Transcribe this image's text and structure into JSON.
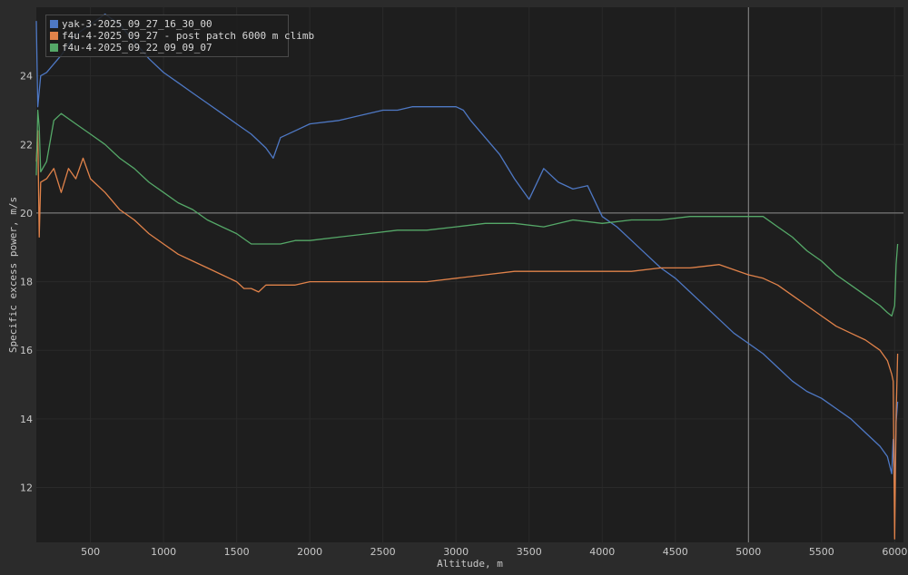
{
  "chart_data": {
    "type": "line",
    "title": "",
    "xlabel": "Altitude, m",
    "ylabel": "Specific excess power, m/s",
    "xlim": [
      130,
      6060
    ],
    "ylim": [
      10.4,
      26.0
    ],
    "xticks": [
      500,
      1000,
      1500,
      2000,
      2500,
      3000,
      3500,
      4000,
      4500,
      5000,
      5500,
      6000
    ],
    "yticks": [
      12,
      14,
      16,
      18,
      20,
      22,
      24
    ],
    "reference_lines": {
      "y": 20,
      "x": 5000
    },
    "grid": "faint",
    "legend_position": "top-left",
    "colors": {
      "background": "#1e1e1e",
      "frame": "#2b2b2b",
      "grid": "#2a2a2a",
      "reference": "#8c8c8c"
    },
    "series": [
      {
        "name": "yak-3-2025_09_27_16_30_00",
        "color": "#4e78c4",
        "x": [
          130,
          140,
          160,
          200,
          300,
          400,
          500,
          600,
          700,
          800,
          900,
          1000,
          1100,
          1200,
          1300,
          1400,
          1500,
          1600,
          1650,
          1700,
          1750,
          1800,
          1900,
          2000,
          2200,
          2400,
          2500,
          2600,
          2700,
          2800,
          2900,
          3000,
          3050,
          3100,
          3200,
          3300,
          3400,
          3500,
          3600,
          3700,
          3800,
          3900,
          4000,
          4100,
          4200,
          4300,
          4400,
          4500,
          4600,
          4700,
          4800,
          4900,
          5000,
          5100,
          5200,
          5300,
          5400,
          5500,
          5600,
          5700,
          5800,
          5900,
          5950,
          5980,
          5990,
          6000,
          6010,
          6020
        ],
        "y": [
          25.6,
          23.1,
          24.0,
          24.1,
          24.6,
          25.2,
          25.5,
          25.8,
          25.5,
          25.0,
          24.5,
          24.1,
          23.8,
          23.5,
          23.2,
          22.9,
          22.6,
          22.3,
          22.1,
          21.9,
          21.6,
          22.2,
          22.4,
          22.6,
          22.7,
          22.9,
          23.0,
          23.0,
          23.1,
          23.1,
          23.1,
          23.1,
          23.0,
          22.7,
          22.2,
          21.7,
          21.0,
          20.4,
          21.3,
          20.9,
          20.7,
          20.8,
          19.9,
          19.6,
          19.2,
          18.8,
          18.4,
          18.1,
          17.7,
          17.3,
          16.9,
          16.5,
          16.2,
          15.9,
          15.5,
          15.1,
          14.8,
          14.6,
          14.3,
          14.0,
          13.6,
          13.2,
          12.9,
          12.4,
          13.4,
          12.0,
          13.9,
          14.5
        ]
      },
      {
        "name": "f4u-4-2025_09_27 - post patch 6000 m climb",
        "color": "#e0824a",
        "x": [
          130,
          140,
          150,
          160,
          200,
          250,
          300,
          350,
          400,
          450,
          500,
          600,
          700,
          800,
          900,
          1000,
          1100,
          1200,
          1300,
          1400,
          1500,
          1550,
          1600,
          1650,
          1700,
          1800,
          1900,
          2000,
          2200,
          2400,
          2600,
          2800,
          3000,
          3200,
          3400,
          3600,
          3800,
          4000,
          4200,
          4400,
          4600,
          4800,
          5000,
          5100,
          5200,
          5300,
          5400,
          5500,
          5600,
          5700,
          5800,
          5900,
          5950,
          5980,
          5990,
          6000,
          6010,
          6020
        ],
        "y": [
          21.5,
          22.4,
          19.3,
          20.9,
          21.0,
          21.3,
          20.6,
          21.3,
          21.0,
          21.6,
          21.0,
          20.6,
          20.1,
          19.8,
          19.4,
          19.1,
          18.8,
          18.6,
          18.4,
          18.2,
          18.0,
          17.8,
          17.8,
          17.7,
          17.9,
          17.9,
          17.9,
          18.0,
          18.0,
          18.0,
          18.0,
          18.0,
          18.1,
          18.2,
          18.3,
          18.3,
          18.3,
          18.3,
          18.3,
          18.4,
          18.4,
          18.5,
          18.2,
          18.1,
          17.9,
          17.6,
          17.3,
          17.0,
          16.7,
          16.5,
          16.3,
          16.0,
          15.7,
          15.3,
          15.1,
          10.5,
          14.1,
          15.9
        ]
      },
      {
        "name": "f4u-4-2025_09_22_09_09_07",
        "color": "#55a868",
        "x": [
          130,
          140,
          150,
          160,
          200,
          250,
          300,
          400,
          500,
          600,
          700,
          800,
          900,
          1000,
          1100,
          1200,
          1300,
          1400,
          1500,
          1600,
          1700,
          1800,
          1900,
          2000,
          2200,
          2400,
          2600,
          2800,
          3000,
          3200,
          3400,
          3600,
          3800,
          4000,
          4200,
          4400,
          4600,
          4800,
          5000,
          5100,
          5200,
          5300,
          5400,
          5500,
          5600,
          5700,
          5800,
          5900,
          5950,
          5980,
          6000,
          6010,
          6020
        ],
        "y": [
          21.1,
          23.0,
          22.5,
          21.2,
          21.5,
          22.7,
          22.9,
          22.6,
          22.3,
          22.0,
          21.6,
          21.3,
          20.9,
          20.6,
          20.3,
          20.1,
          19.8,
          19.6,
          19.4,
          19.1,
          19.1,
          19.1,
          19.2,
          19.2,
          19.3,
          19.4,
          19.5,
          19.5,
          19.6,
          19.7,
          19.7,
          19.6,
          19.8,
          19.7,
          19.8,
          19.8,
          19.9,
          19.9,
          19.9,
          19.9,
          19.6,
          19.3,
          18.9,
          18.6,
          18.2,
          17.9,
          17.6,
          17.3,
          17.1,
          17.0,
          17.3,
          18.5,
          19.1
        ]
      }
    ]
  }
}
